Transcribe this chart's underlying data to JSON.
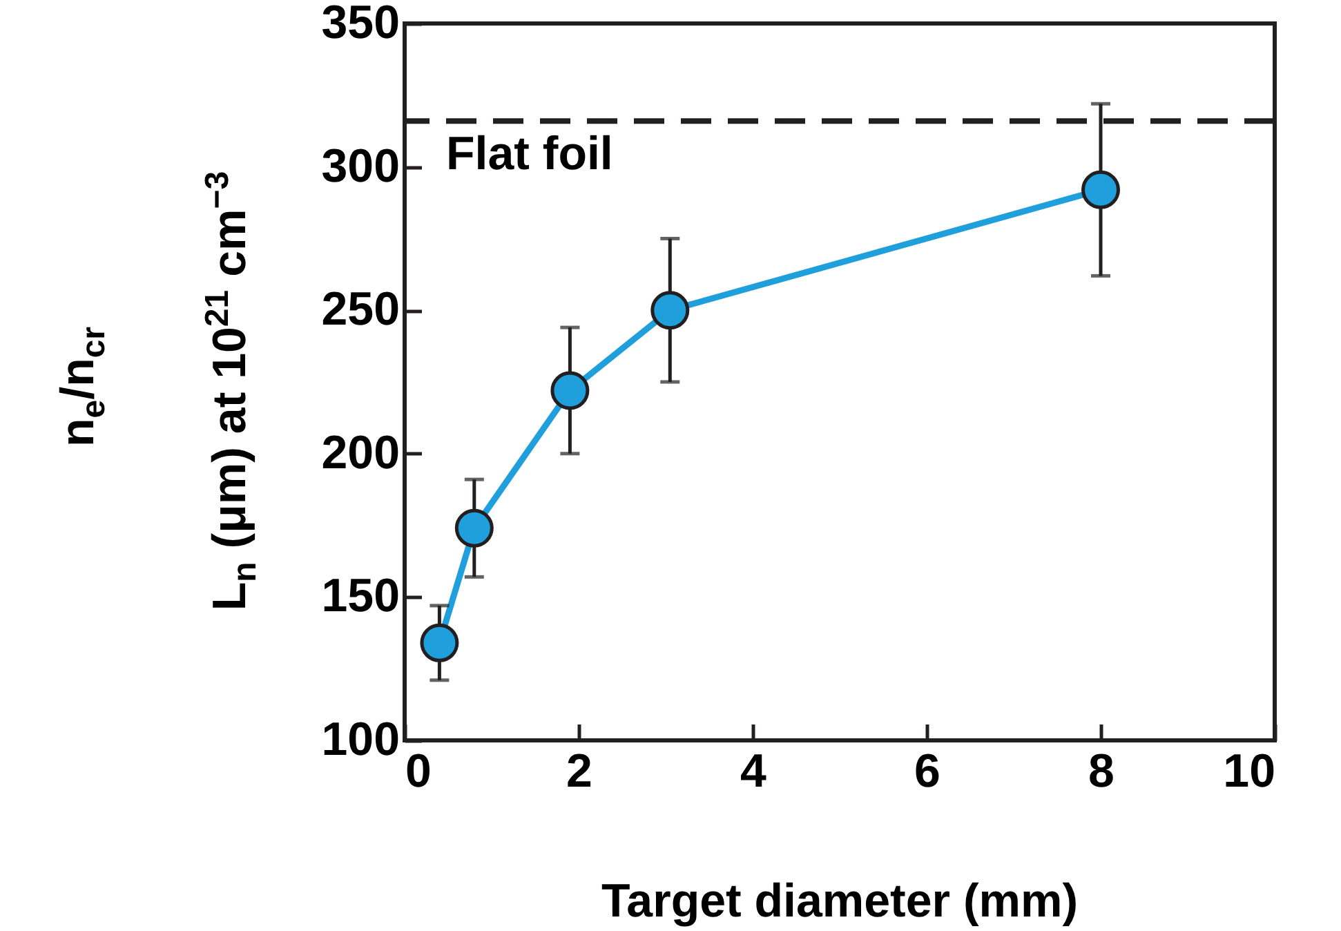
{
  "chart_data": {
    "type": "line",
    "xlabel": "Target diameter (mm)",
    "ylabel": "L$_{n}$ (μm) at 10$^{21}$ cm$^{−3}$",
    "annotations": [
      "n$_{e}$/n$_{cr}$"
    ],
    "x": [
      0.4,
      0.8,
      1.9,
      3.05,
      8
    ],
    "series": [
      {
        "color": "#1f9fdb",
        "values": [
          134,
          174,
          222,
          250,
          292
        ],
        "errors": [
          13,
          17,
          22,
          25,
          30
        ]
      }
    ],
    "marker": "circle",
    "xlim": [
      0,
      10
    ],
    "xticks": [
      0,
      2,
      4,
      6,
      8,
      10
    ],
    "ylim": [
      100,
      350
    ],
    "yticks": [
      100,
      150,
      200,
      250,
      300,
      350
    ],
    "ref_lines": [
      {
        "axis": "y",
        "value": 316,
        "label": "Flat foil",
        "line_style": "dashed",
        "color": "#231f20"
      }
    ]
  }
}
